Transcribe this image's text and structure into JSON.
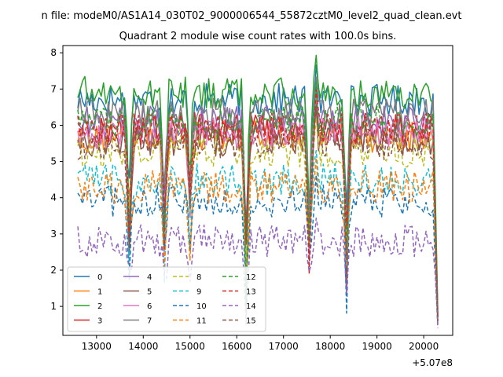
{
  "chart_data": {
    "type": "line",
    "suptitle": "n file: modeM0/AS1A14_030T02_9000006544_55872cztM0_level2_quad_clean.evt",
    "title": "Quadrant 2 module wise count rates with 100.0s bins.",
    "xlabel": "",
    "ylabel": "",
    "x_offset_label": "+5.07e8",
    "x_range": [
      12600,
      20300
    ],
    "xlim": [
      12280,
      20620
    ],
    "ylim": [
      0.2,
      8.2
    ],
    "x_ticks": [
      13000,
      14000,
      15000,
      16000,
      17000,
      18000,
      19000,
      20000
    ],
    "x_tick_labels": [
      "13000",
      "14000",
      "15000",
      "16000",
      "17000",
      "18000",
      "19000",
      "20000"
    ],
    "y_ticks": [
      1,
      2,
      3,
      4,
      5,
      6,
      7,
      8
    ],
    "y_tick_labels": [
      "1",
      "2",
      "3",
      "4",
      "5",
      "6",
      "7",
      "8"
    ],
    "dips": [
      {
        "x": 13700,
        "depth": 0.45
      },
      {
        "x": 14450,
        "depth": 0.45
      },
      {
        "x": 15000,
        "depth": 0.35
      },
      {
        "x": 16200,
        "depth": 0.7
      },
      {
        "x": 17550,
        "depth": 0.5
      },
      {
        "x": 18350,
        "depth": 0.55
      }
    ],
    "spikes": [
      {
        "x": 17700,
        "height": 0.15
      }
    ],
    "end_drop": {
      "from_x": 20200,
      "to_x": 20300
    },
    "series": [
      {
        "name": "0",
        "color": "#1f77b4",
        "dash": "solid",
        "base": 6.7,
        "end": 0.8
      },
      {
        "name": "1",
        "color": "#ff7f0e",
        "dash": "solid",
        "base": 5.7,
        "end": 0.7
      },
      {
        "name": "2",
        "color": "#2ca02c",
        "dash": "solid",
        "base": 6.9,
        "end": 0.9
      },
      {
        "name": "3",
        "color": "#d62728",
        "dash": "solid",
        "base": 5.9,
        "end": 0.7
      },
      {
        "name": "4",
        "color": "#9467bd",
        "dash": "solid",
        "base": 6.1,
        "end": 0.6
      },
      {
        "name": "5",
        "color": "#8c564b",
        "dash": "solid",
        "base": 5.6,
        "end": 0.6
      },
      {
        "name": "6",
        "color": "#e377c2",
        "dash": "solid",
        "base": 5.8,
        "end": 0.7
      },
      {
        "name": "7",
        "color": "#7f7f7f",
        "dash": "solid",
        "base": 6.3,
        "end": 0.7
      },
      {
        "name": "8",
        "color": "#bcbd22",
        "dash": "dashed",
        "base": 5.3,
        "end": 0.6
      },
      {
        "name": "9",
        "color": "#17becf",
        "dash": "dashed",
        "base": 4.5,
        "end": 0.6
      },
      {
        "name": "10",
        "color": "#1f77b4",
        "dash": "dashed",
        "base": 3.9,
        "end": 0.5
      },
      {
        "name": "11",
        "color": "#ff7f0e",
        "dash": "dashed",
        "base": 4.3,
        "end": 0.5
      },
      {
        "name": "12",
        "color": "#2ca02c",
        "dash": "dashed",
        "base": 6.1,
        "end": 0.7
      },
      {
        "name": "13",
        "color": "#d62728",
        "dash": "dashed",
        "base": 5.9,
        "end": 0.7
      },
      {
        "name": "14",
        "color": "#9467bd",
        "dash": "dashed",
        "base": 2.8,
        "end": 0.4
      },
      {
        "name": "15",
        "color": "#8c564b",
        "dash": "dashed",
        "base": 5.5,
        "end": 0.6
      }
    ],
    "legend": {
      "location": "lower-left",
      "columns": 4,
      "labels": [
        "0",
        "1",
        "2",
        "3",
        "4",
        "5",
        "6",
        "7",
        "8",
        "9",
        "10",
        "11",
        "12",
        "13",
        "14",
        "15"
      ]
    },
    "grid": false
  }
}
